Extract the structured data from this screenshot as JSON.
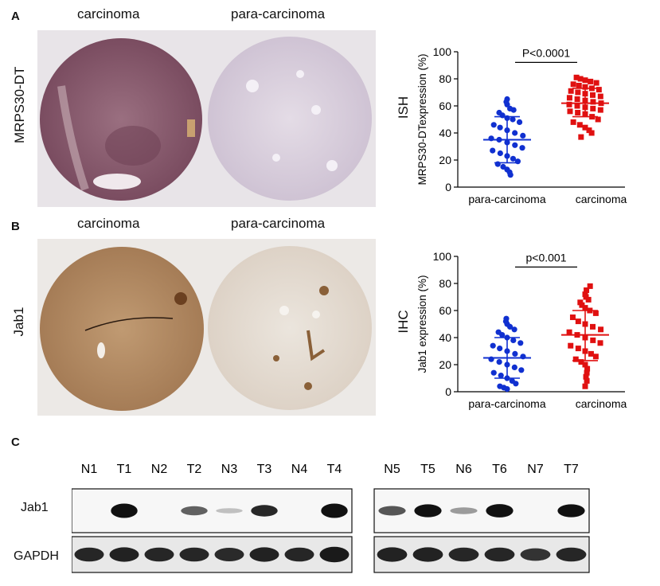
{
  "panelA": {
    "letter": "A",
    "col_left": "carcinoma",
    "col_right": "para-carcinoma",
    "row_label": "MRPS30-DT",
    "method": "ISH",
    "colors": {
      "carcinoma_tissue": "#8e6474",
      "para_tissue": "#ddd3df",
      "bg": "#e9e5e9"
    }
  },
  "panelB": {
    "letter": "B",
    "col_left": "carcinoma",
    "col_right": "para-carcinoma",
    "row_label": "Jab1",
    "method": "IHC",
    "colors": {
      "carcinoma_tissue": "#b8906a",
      "para_tissue": "#e7e0d8",
      "bg": "#ece9e6"
    }
  },
  "chart_data": [
    {
      "type": "scatter",
      "ylabel": "MRPS30-DTexpression (%)",
      "ylim": [
        0,
        100
      ],
      "yticks": [
        0,
        20,
        40,
        60,
        80,
        100
      ],
      "categories": [
        "para-carcinoma",
        "carcinoma"
      ],
      "annotation": "P<0.0001",
      "series": [
        {
          "color": "#1030d0",
          "marker": "circle",
          "mean": 35,
          "sd_low": 18,
          "sd_high": 52,
          "values": [
            65,
            63,
            61,
            58,
            57,
            55,
            53,
            51,
            50,
            48,
            46,
            44,
            42,
            40,
            38,
            36,
            35,
            33,
            31,
            29,
            27,
            25,
            23,
            21,
            19,
            17,
            15,
            13,
            11,
            9
          ]
        },
        {
          "color": "#e01010",
          "marker": "square",
          "mean": 62,
          "sd_low": 52,
          "sd_high": 73,
          "values": [
            81,
            80,
            79,
            78,
            77,
            76,
            75,
            74,
            73,
            72,
            71,
            70,
            69,
            68,
            67,
            66,
            65,
            64,
            63,
            62,
            61,
            60,
            59,
            58,
            57,
            56,
            55,
            54,
            52,
            50,
            48,
            46,
            44,
            42,
            40,
            37
          ]
        }
      ]
    },
    {
      "type": "scatter",
      "ylabel": "Jab1 expression (%)",
      "ylim": [
        0,
        100
      ],
      "yticks": [
        0,
        20,
        40,
        60,
        80,
        100
      ],
      "categories": [
        "para-carcinoma",
        "carcinoma"
      ],
      "annotation": "p<0.001",
      "series": [
        {
          "color": "#1030d0",
          "marker": "circle",
          "mean": 25,
          "sd_low": 10,
          "sd_high": 40,
          "values": [
            54,
            52,
            50,
            48,
            46,
            44,
            42,
            40,
            38,
            36,
            34,
            32,
            30,
            28,
            26,
            24,
            22,
            20,
            18,
            16,
            14,
            12,
            10,
            8,
            6,
            4,
            3,
            2
          ]
        },
        {
          "color": "#e01010",
          "marker": "square",
          "mean": 42,
          "sd_low": 23,
          "sd_high": 60,
          "values": [
            78,
            75,
            72,
            70,
            68,
            66,
            64,
            62,
            60,
            58,
            55,
            52,
            50,
            48,
            46,
            44,
            42,
            40,
            38,
            36,
            34,
            32,
            30,
            28,
            26,
            24,
            22,
            20,
            17,
            14,
            11,
            8,
            4
          ]
        }
      ]
    }
  ],
  "panelC": {
    "letter": "C",
    "lanes_left": [
      "N1",
      "T1",
      "N2",
      "T2",
      "N3",
      "T3",
      "N4",
      "T4"
    ],
    "lanes_right": [
      "N5",
      "T5",
      "N6",
      "T6",
      "N7",
      "T7"
    ],
    "rows": [
      "Jab1",
      "GAPDH"
    ],
    "jab1_left": [
      0,
      1.0,
      0,
      0.45,
      0.04,
      0.7,
      0,
      1.0
    ],
    "jab1_right": [
      0.5,
      0.85,
      0.2,
      0.9,
      0,
      0.85
    ],
    "gapdh_left": [
      0.8,
      0.85,
      0.8,
      0.8,
      0.75,
      0.85,
      0.8,
      0.95
    ],
    "gapdh_right": [
      0.85,
      0.85,
      0.8,
      0.8,
      0.65,
      0.8
    ]
  }
}
